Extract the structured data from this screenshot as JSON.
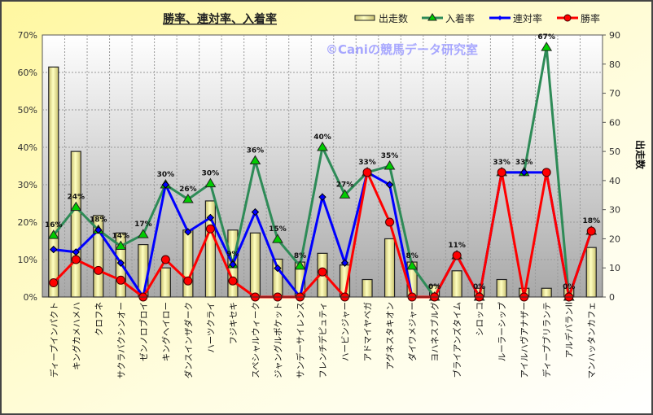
{
  "chart_data": {
    "type": "bar+line",
    "title": "勝率、連対率、入着率",
    "watermark": "©Caniの競馬データ研究室",
    "ylabel_left": "",
    "ylabel_right": "出走数",
    "ylim_left": [
      0,
      70
    ],
    "ylim_right": [
      0,
      90
    ],
    "yticks_left": [
      "0%",
      "10%",
      "20%",
      "30%",
      "40%",
      "50%",
      "60%",
      "70%"
    ],
    "yticks_right": [
      "0",
      "10",
      "20",
      "30",
      "40",
      "50",
      "60",
      "70",
      "80",
      "90"
    ],
    "legend_position": "top-right",
    "grid": true,
    "categories": [
      "ディープインパクト",
      "キングカメハメハ",
      "クロフネ",
      "サクラバクシンオー",
      "ゼンノロブロイ",
      "キングヘイロー",
      "ダンスインザダーク",
      "ハーツクライ",
      "フジキセキ",
      "スペシャルウィーク",
      "ジャングルポケット",
      "サンデーサイレンス",
      "フレンチデピュティ",
      "ハービンジャー",
      "アドマイヤベガ",
      "アグネスタキオン",
      "ダイワメジャー",
      "ヨハネスブルグ",
      "ブライアンズタイム",
      "シロッコ",
      "ルーラーシップ",
      "アイルハヴアナザー",
      "ディープブリランテ",
      "アルデバランII",
      "マンハッタンカフェ"
    ],
    "series": [
      {
        "name": "出走数",
        "type": "bar",
        "axis": "right",
        "color": "#f0eea0",
        "values": [
          79,
          50,
          28,
          22,
          18,
          10,
          23,
          33,
          23,
          22,
          13,
          12,
          15,
          11,
          6,
          20,
          12,
          4,
          9,
          3,
          6,
          3,
          3,
          3,
          17
        ]
      },
      {
        "name": "入着率",
        "type": "line",
        "axis": "left",
        "color": "#2e8b57",
        "marker": "triangle",
        "marker_color": "#00cc00",
        "values": [
          16.5,
          24,
          17.9,
          13.6,
          16.7,
          30,
          26.1,
          30.3,
          8.7,
          36.4,
          15.4,
          8.3,
          40,
          27.3,
          33.3,
          35,
          8.3,
          0,
          11.1,
          0,
          33.3,
          33.3,
          66.7,
          0,
          17.6
        ],
        "labels": [
          "16%",
          "24%",
          "18%",
          "14%",
          "17%",
          "30%",
          "26%",
          "30%",
          "9%",
          "36%",
          "15%",
          "8%",
          "40%",
          "27%",
          "33%",
          "35%",
          "8%",
          "0%",
          "11%",
          "0%",
          "33%",
          "33%",
          "67%",
          "0%",
          "18%"
        ]
      },
      {
        "name": "連対率",
        "type": "line",
        "axis": "left",
        "color": "#0000ff",
        "marker": "diamond",
        "values": [
          12.7,
          12,
          17.9,
          9.1,
          0,
          30,
          17.4,
          21.2,
          8.7,
          22.7,
          7.7,
          0,
          26.7,
          9.1,
          33.3,
          30,
          0,
          0,
          11.1,
          0,
          33.3,
          33.3,
          33.3,
          0,
          17.6
        ]
      },
      {
        "name": "勝率",
        "type": "line",
        "axis": "left",
        "color": "#ff0000",
        "marker": "circle",
        "values": [
          3.8,
          10,
          7.1,
          4.5,
          0,
          10,
          4.3,
          18.2,
          4.3,
          0,
          0,
          0,
          6.7,
          0,
          33.3,
          20,
          0,
          0,
          11.1,
          0,
          33.3,
          0,
          33.3,
          0,
          17.6
        ]
      }
    ]
  }
}
